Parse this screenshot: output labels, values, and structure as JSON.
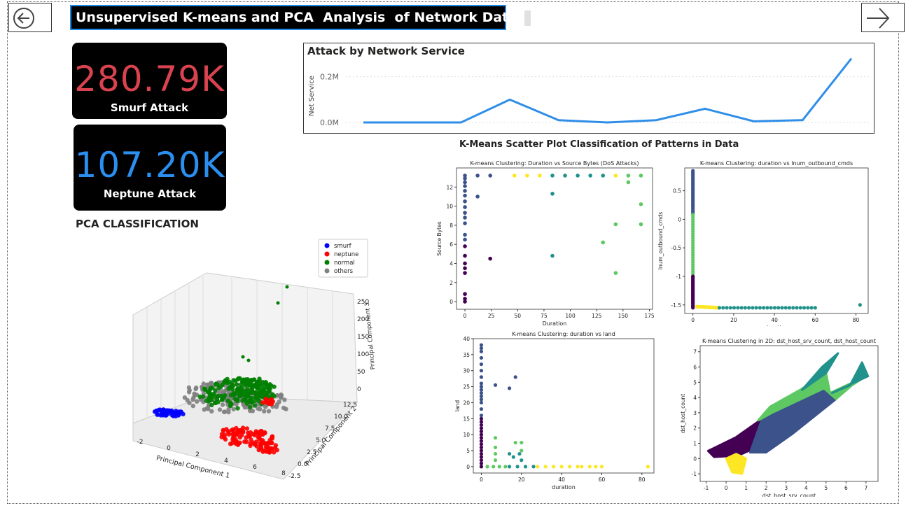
{
  "header": {
    "title": "Unsupervised K-means and PCA  Analysis  of Network Data"
  },
  "kpis": [
    {
      "value": "280.79K",
      "label": "Smurf Attack",
      "color": "#d9434f"
    },
    {
      "value": "107.20K",
      "label": "Neptune Attack",
      "color": "#2b8ff0"
    }
  ],
  "line_chart": {
    "title": "Attack by Network Service",
    "ylabel": "Net Service",
    "ytick_labels": [
      "0.0M",
      "0.2M"
    ]
  },
  "kmeans": {
    "section_title": "K-Means Scatter Plot Classification of Patterns in Data"
  },
  "pca": {
    "section_title": "PCA CLASSIFICATION"
  },
  "colors": {
    "viridis": [
      "#440154",
      "#3b528b",
      "#21918c",
      "#5ec962",
      "#fde725"
    ],
    "line": "#2f8ee8"
  },
  "chart_data": [
    {
      "type": "line",
      "title": "Attack by Network Service",
      "ylabel": "Net Service",
      "xlabel": "",
      "ylim": [
        0,
        0.3
      ],
      "yticks": [
        0,
        0.2
      ],
      "ytick_labels": [
        "0.0M",
        "0.2M"
      ],
      "series": [
        {
          "name": "Net Service",
          "values": [
            0.0,
            0.0,
            0.0,
            0.1,
            0.01,
            0.0,
            0.01,
            0.06,
            0.005,
            0.01,
            0.28
          ]
        }
      ]
    },
    {
      "type": "scatter",
      "title": "K-means Clustering: Duration vs Source Bytes (DoS Attacks)",
      "xlabel": "Duration",
      "ylabel": "Source Bytes",
      "xlim": [
        -8,
        178
      ],
      "ylim": [
        -0.8,
        14
      ],
      "xticks": [
        0,
        25,
        50,
        75,
        100,
        125,
        150,
        175
      ],
      "yticks": [
        0,
        2,
        4,
        6,
        8,
        10,
        12
      ],
      "points": [
        [
          0,
          0,
          0
        ],
        [
          0,
          0.3,
          0
        ],
        [
          0,
          0.8,
          0
        ],
        [
          0,
          3,
          0
        ],
        [
          0,
          3.5,
          0
        ],
        [
          0,
          4,
          0
        ],
        [
          0,
          4.8,
          0
        ],
        [
          0,
          5.8,
          0
        ],
        [
          24,
          4.5,
          0
        ],
        [
          0,
          6.5,
          1
        ],
        [
          0,
          7,
          1
        ],
        [
          0,
          8.2,
          1
        ],
        [
          0,
          8.8,
          1
        ],
        [
          0,
          9.3,
          1
        ],
        [
          0,
          9.9,
          1
        ],
        [
          0,
          10.5,
          1
        ],
        [
          0,
          11.1,
          1
        ],
        [
          0,
          11.6,
          1
        ],
        [
          0,
          12.1,
          1
        ],
        [
          0,
          12.5,
          1
        ],
        [
          0,
          12.9,
          1
        ],
        [
          0,
          13.2,
          1
        ],
        [
          12,
          11,
          1
        ],
        [
          12,
          13.2,
          1
        ],
        [
          24,
          13.2,
          1
        ],
        [
          83,
          11.3,
          2
        ],
        [
          83,
          4.8,
          2
        ],
        [
          83,
          13.2,
          2
        ],
        [
          95,
          13.2,
          2
        ],
        [
          107,
          13.2,
          2
        ],
        [
          119,
          13.2,
          2
        ],
        [
          131,
          13.2,
          2
        ],
        [
          131,
          6.2,
          3
        ],
        [
          143,
          8.1,
          3
        ],
        [
          143,
          3,
          3
        ],
        [
          155,
          12.5,
          3
        ],
        [
          155,
          13.2,
          3
        ],
        [
          167,
          10.2,
          3
        ],
        [
          167,
          8.1,
          3
        ],
        [
          167,
          13.2,
          3
        ],
        [
          47,
          13.2,
          4
        ],
        [
          59,
          13.2,
          4
        ],
        [
          71,
          13.2,
          4
        ],
        [
          143,
          13.2,
          4
        ]
      ]
    },
    {
      "type": "scatter",
      "title": "K-means Clustering: duration vs lnum_outbound_cmds",
      "xlabel": "duration",
      "ylabel": "lnum_outbound_cmds",
      "xlim": [
        -4,
        86
      ],
      "ylim": [
        -1.65,
        0.9
      ],
      "xticks": [
        0,
        20,
        40,
        60,
        80
      ],
      "yticks": [
        -1.5,
        -1.0,
        -0.5,
        0.0,
        0.5
      ],
      "point_groups": [
        {
          "cluster": 1,
          "x": [
            0,
            0
          ],
          "y": [
            0.1,
            0.85
          ]
        },
        {
          "cluster": 3,
          "x": [
            0,
            0
          ],
          "y": [
            -1.0,
            0.08
          ]
        },
        {
          "cluster": 0,
          "x": [
            0,
            0
          ],
          "y": [
            -1.55,
            -1.0
          ]
        },
        {
          "cluster": 4,
          "x": [
            2,
            13
          ],
          "y": [
            -1.53,
            -1.55
          ]
        },
        {
          "cluster": 2,
          "x": [
            13,
            60
          ],
          "y": [
            -1.55,
            -1.55
          ]
        }
      ],
      "outliers": [
        [
          82,
          -1.5,
          2
        ]
      ]
    },
    {
      "type": "scatter",
      "title": "K-means Clustering: duration vs land",
      "xlabel": "duration",
      "ylabel": "land",
      "xlim": [
        -4,
        86
      ],
      "ylim": [
        -2,
        40
      ],
      "xticks": [
        0,
        20,
        40,
        60,
        80
      ],
      "yticks": [
        0,
        5,
        10,
        15,
        20,
        25,
        30,
        35,
        40
      ],
      "points": [
        [
          0,
          0,
          0
        ],
        [
          0,
          1,
          0
        ],
        [
          0,
          2,
          0
        ],
        [
          0,
          3,
          0
        ],
        [
          0,
          4,
          0
        ],
        [
          0,
          5,
          0
        ],
        [
          0,
          6,
          0
        ],
        [
          0,
          7,
          0
        ],
        [
          0,
          8,
          0
        ],
        [
          0,
          9,
          0
        ],
        [
          0,
          10,
          0
        ],
        [
          0,
          11,
          0
        ],
        [
          0,
          12,
          0
        ],
        [
          0,
          13,
          0
        ],
        [
          0,
          14,
          0
        ],
        [
          0,
          15,
          0
        ],
        [
          0,
          16,
          1
        ],
        [
          0,
          18,
          1
        ],
        [
          0,
          20,
          1
        ],
        [
          0,
          21,
          1
        ],
        [
          0,
          22,
          1
        ],
        [
          0,
          23,
          1
        ],
        [
          0,
          24,
          1
        ],
        [
          0,
          25,
          1
        ],
        [
          0,
          26,
          1
        ],
        [
          0,
          28,
          1
        ],
        [
          0,
          30,
          1
        ],
        [
          0,
          32,
          1
        ],
        [
          0,
          34,
          1
        ],
        [
          0,
          36,
          1
        ],
        [
          0,
          37,
          1
        ],
        [
          0,
          38,
          1
        ],
        [
          7,
          25.5,
          1
        ],
        [
          14,
          24.5,
          1
        ],
        [
          17,
          28,
          1
        ],
        [
          14,
          4,
          2
        ],
        [
          16,
          3,
          2
        ],
        [
          19,
          4,
          2
        ],
        [
          20,
          2,
          2
        ],
        [
          14,
          0,
          2
        ],
        [
          18,
          0,
          2
        ],
        [
          22,
          0,
          2
        ],
        [
          26,
          0,
          2
        ],
        [
          7,
          9,
          3
        ],
        [
          7,
          6,
          3
        ],
        [
          7,
          4,
          3
        ],
        [
          7,
          2,
          3
        ],
        [
          3,
          0,
          3
        ],
        [
          6,
          0,
          3
        ],
        [
          9,
          0,
          3
        ],
        [
          12,
          0,
          3
        ],
        [
          17,
          7.5,
          3
        ],
        [
          20,
          7.5,
          3
        ],
        [
          20,
          5,
          3
        ],
        [
          28,
          0,
          4
        ],
        [
          32,
          0,
          4
        ],
        [
          36,
          0,
          4
        ],
        [
          40,
          0,
          4
        ],
        [
          44,
          0,
          4
        ],
        [
          48,
          0,
          4
        ],
        [
          50,
          0,
          4
        ],
        [
          54,
          0,
          4
        ],
        [
          57,
          0,
          4
        ],
        [
          60,
          0,
          4
        ],
        [
          83,
          0,
          4
        ]
      ]
    },
    {
      "type": "scatter",
      "title": "K-means Clustering in 2D: dst_host_srv_count, dst_host_count",
      "xlabel": "dst_host_srv_count",
      "ylabel": "dst_host_count",
      "xlim": [
        -1.3,
        7.6
      ],
      "ylim": [
        -1.5,
        7.4
      ],
      "xticks": [
        -1,
        0,
        1,
        2,
        3,
        4,
        5,
        6,
        7
      ],
      "yticks": [
        -1,
        0,
        1,
        2,
        3,
        4,
        5,
        6,
        7
      ],
      "regions": [
        {
          "cluster": 0,
          "polygon": [
            [
              -0.9,
              0.5
            ],
            [
              0.5,
              1.4
            ],
            [
              1.8,
              2.6
            ],
            [
              1.3,
              0.6
            ],
            [
              0.6,
              0.2
            ],
            [
              -0.6,
              0.1
            ]
          ]
        },
        {
          "cluster": 1,
          "polygon": [
            [
              1.2,
              0.4
            ],
            [
              1.8,
              2.6
            ],
            [
              2.3,
              3.0
            ],
            [
              4.9,
              4.6
            ],
            [
              5.5,
              3.9
            ],
            [
              3.3,
              1.6
            ],
            [
              2.0,
              0.4
            ]
          ]
        },
        {
          "cluster": 4,
          "polygon": [
            [
              0.0,
              0.0
            ],
            [
              0.5,
              0.3
            ],
            [
              1.0,
              0.0
            ],
            [
              0.8,
              -1.0
            ],
            [
              0.3,
              -0.9
            ]
          ]
        },
        {
          "cluster": 3,
          "polygon": [
            [
              1.6,
              2.5
            ],
            [
              2.3,
              3.0
            ],
            [
              4.9,
              4.6
            ],
            [
              5.5,
              3.9
            ],
            [
              6.3,
              4.8
            ],
            [
              7.0,
              5.4
            ],
            [
              5.2,
              4.3
            ],
            [
              5.0,
              5.6
            ],
            [
              3.7,
              4.5
            ],
            [
              2.2,
              3.4
            ]
          ]
        },
        {
          "cluster": 2,
          "polygon": [
            [
              3.8,
              4.5
            ],
            [
              5.0,
              5.6
            ],
            [
              5.6,
              6.9
            ],
            [
              4.8,
              6.0
            ]
          ]
        },
        {
          "cluster": 2,
          "polygon": [
            [
              6.2,
              4.8
            ],
            [
              6.8,
              6.3
            ],
            [
              7.1,
              5.4
            ],
            [
              5.3,
              4.3
            ]
          ]
        }
      ]
    },
    {
      "type": "scatter",
      "title": "",
      "dimensions": 3,
      "xlabel": "Principal Component 1",
      "ylabel": "Principal Component 2",
      "zlabel": "Principal Component 3",
      "xticks": [
        -2,
        0,
        2,
        4,
        6,
        8
      ],
      "yticks": [
        -2.5,
        0.0,
        2.5,
        5.0,
        7.5,
        10.0,
        12.5
      ],
      "zticks": [
        0,
        50,
        100,
        150,
        200,
        250
      ],
      "legend": {
        "placement": "top-right",
        "entries": [
          {
            "label": "smurf",
            "color": "#0000ff"
          },
          {
            "label": "neptune",
            "color": "#ff0000"
          },
          {
            "label": "normal",
            "color": "#008000"
          },
          {
            "label": "others",
            "color": "#808080"
          }
        ]
      }
    }
  ]
}
